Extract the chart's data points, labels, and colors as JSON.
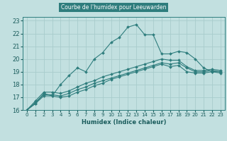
{
  "title": "Courbe de l'humidex pour Leeuwarden",
  "xlabel": "Humidex (Indice chaleur)",
  "bg_color": "#c2e0e0",
  "grid_color": "#a8cccc",
  "line_color": "#2e7d7d",
  "text_color": "#1a5c5c",
  "xlim": [
    -0.5,
    23.5
  ],
  "ylim": [
    16,
    23.3
  ],
  "yticks": [
    16,
    17,
    18,
    19,
    20,
    21,
    22,
    23
  ],
  "xticks": [
    0,
    1,
    2,
    3,
    4,
    5,
    6,
    7,
    8,
    9,
    10,
    11,
    12,
    13,
    14,
    15,
    16,
    17,
    18,
    19,
    20,
    21,
    22,
    23
  ],
  "series1_x": [
    0,
    1,
    2,
    3,
    4,
    5,
    6,
    7,
    8,
    9,
    10,
    11,
    12,
    13,
    14,
    15,
    16,
    17,
    18,
    19,
    20,
    21,
    22,
    23
  ],
  "series1_y": [
    16.0,
    16.5,
    17.3,
    17.1,
    18.0,
    18.7,
    19.3,
    19.0,
    20.0,
    20.5,
    21.3,
    21.7,
    22.5,
    22.7,
    21.9,
    21.9,
    20.4,
    20.4,
    20.6,
    20.5,
    20.0,
    19.3,
    19.0,
    19.0
  ],
  "series2_x": [
    0,
    1,
    2,
    3,
    4,
    5,
    6,
    7,
    8,
    9,
    10,
    11,
    12,
    13,
    14,
    15,
    16,
    17,
    18,
    19,
    20,
    21,
    22,
    23
  ],
  "series2_y": [
    16.0,
    16.5,
    17.1,
    17.1,
    17.0,
    17.1,
    17.4,
    17.6,
    17.9,
    18.1,
    18.4,
    18.6,
    18.8,
    19.0,
    19.2,
    19.4,
    19.6,
    19.4,
    19.5,
    19.0,
    18.9,
    18.9,
    19.0,
    18.9
  ],
  "series3_x": [
    0,
    1,
    2,
    3,
    4,
    5,
    6,
    7,
    8,
    9,
    10,
    11,
    12,
    13,
    14,
    15,
    16,
    17,
    18,
    19,
    20,
    21,
    22,
    23
  ],
  "series3_y": [
    16.0,
    16.6,
    17.2,
    17.2,
    17.1,
    17.3,
    17.6,
    17.8,
    18.1,
    18.3,
    18.5,
    18.7,
    18.9,
    19.1,
    19.3,
    19.5,
    19.7,
    19.6,
    19.7,
    19.3,
    19.0,
    19.0,
    19.1,
    19.0
  ],
  "series4_x": [
    0,
    1,
    2,
    3,
    4,
    5,
    6,
    7,
    8,
    9,
    10,
    11,
    12,
    13,
    14,
    15,
    16,
    17,
    18,
    19,
    20,
    21,
    22,
    23
  ],
  "series4_y": [
    16.0,
    16.7,
    17.4,
    17.4,
    17.3,
    17.5,
    17.8,
    18.1,
    18.3,
    18.6,
    18.8,
    19.0,
    19.2,
    19.4,
    19.6,
    19.8,
    20.0,
    19.9,
    19.9,
    19.4,
    19.1,
    19.1,
    19.2,
    19.1
  ],
  "markersize": 2.0,
  "linewidth": 0.8
}
